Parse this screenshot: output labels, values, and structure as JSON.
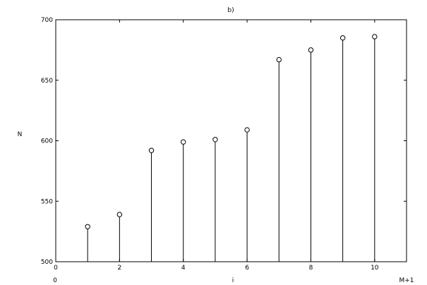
{
  "chart_data": {
    "type": "stem",
    "title": "b)",
    "xlabel": "i",
    "ylabel": "N",
    "x_left_label": "0",
    "x_right_label": "M+1",
    "xlim": [
      0,
      11
    ],
    "ylim": [
      500,
      700
    ],
    "xticks": [
      0,
      2,
      4,
      6,
      8,
      10
    ],
    "yticks": [
      500,
      550,
      600,
      650,
      700
    ],
    "grid": false,
    "marker": "open-circle",
    "x": [
      1,
      2,
      3,
      4,
      5,
      6,
      7,
      8,
      9,
      10
    ],
    "values": [
      529,
      539,
      592,
      599,
      601,
      609,
      667,
      675,
      685,
      686
    ]
  }
}
